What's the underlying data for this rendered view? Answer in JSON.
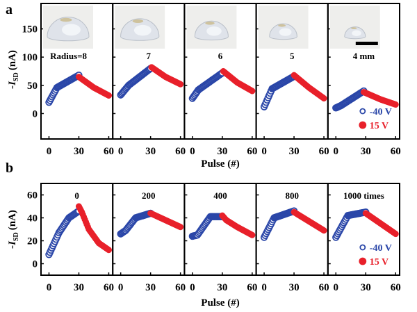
{
  "chart_data": [
    {
      "type": "scatter",
      "panel_letter": "a",
      "xlabel": "Pulse (#)",
      "ylabel": "-I_SD (nA)",
      "ylabel_main": "-I",
      "ylabel_sub": "SD",
      "ylabel_unit": "(nA)",
      "xlim": [
        -8,
        64
      ],
      "ylim": [
        -45,
        195
      ],
      "xticks": [
        0,
        30,
        60
      ],
      "yticks": [
        0,
        50,
        100,
        150
      ],
      "grid": false,
      "legend": {
        "placement": "bottom-right of last subpanel",
        "entries": [
          {
            "label": "-40 V",
            "marker": "open-circle",
            "color": "#2a46a8"
          },
          {
            "label": "15 V",
            "marker": "filled-circle",
            "color": "#e8202a"
          }
        ]
      },
      "insets": "photographs of hemispherical gel drops of decreasing radius; last inset has a scale bar",
      "subpanels": [
        {
          "title": "Radius=8",
          "photo_scale": 1.0,
          "series": [
            {
              "name": "-40 V",
              "x": [
                0,
                8,
                30
              ],
              "y": [
                20,
                46,
                68
              ]
            },
            {
              "name": "15 V",
              "x": [
                30,
                45,
                60
              ],
              "y": [
                65,
                46,
                32
              ]
            }
          ]
        },
        {
          "title": "7",
          "photo_scale": 0.92,
          "series": [
            {
              "name": "-40 V",
              "x": [
                0,
                8,
                30
              ],
              "y": [
                33,
                50,
                80
              ]
            },
            {
              "name": "15 V",
              "x": [
                31,
                45,
                60
              ],
              "y": [
                82,
                65,
                52
              ]
            }
          ]
        },
        {
          "title": "6",
          "photo_scale": 0.8,
          "series": [
            {
              "name": "-40 V",
              "x": [
                0,
                6,
                30
              ],
              "y": [
                27,
                42,
                72
              ]
            },
            {
              "name": "15 V",
              "x": [
                31,
                45,
                60
              ],
              "y": [
                75,
                55,
                40
              ]
            }
          ]
        },
        {
          "title": "5",
          "photo_scale": 0.66,
          "series": [
            {
              "name": "-40 V",
              "x": [
                0,
                8,
                30
              ],
              "y": [
                12,
                44,
                66
              ]
            },
            {
              "name": "15 V",
              "x": [
                30,
                45,
                60
              ],
              "y": [
                68,
                46,
                27
              ]
            }
          ]
        },
        {
          "title": "4 mm",
          "photo_scale": 0.5,
          "scale_bar": true,
          "series": [
            {
              "name": "-40 V",
              "x": [
                0,
                5,
                28
              ],
              "y": [
                10,
                14,
                40
              ]
            },
            {
              "name": "15 V",
              "x": [
                28,
                45,
                60
              ],
              "y": [
                38,
                25,
                16
              ]
            }
          ]
        }
      ]
    },
    {
      "type": "scatter",
      "panel_letter": "b",
      "xlabel": "Pulse (#)",
      "ylabel": "-I_SD (nA)",
      "ylabel_main": "-I",
      "ylabel_sub": "SD",
      "ylabel_unit": "(nA)",
      "xlim": [
        -8,
        64
      ],
      "ylim": [
        -10,
        70
      ],
      "xticks": [
        0,
        30,
        60
      ],
      "yticks": [
        0,
        20,
        40,
        60
      ],
      "grid": false,
      "legend": {
        "placement": "bottom-right of last subpanel",
        "entries": [
          {
            "label": "-40 V",
            "marker": "open-circle",
            "color": "#2a46a8"
          },
          {
            "label": "15 V",
            "marker": "filled-circle",
            "color": "#e8202a"
          }
        ]
      },
      "subpanels": [
        {
          "title": "0",
          "series": [
            {
              "name": "-40 V",
              "x": [
                0,
                10,
                20,
                30
              ],
              "y": [
                8,
                27,
                40,
                46
              ]
            },
            {
              "name": "15 V",
              "x": [
                30,
                33,
                40,
                50,
                60
              ],
              "y": [
                50,
                45,
                30,
                18,
                12
              ]
            }
          ]
        },
        {
          "title": "200",
          "series": [
            {
              "name": "-40 V",
              "x": [
                0,
                5,
                15,
                30
              ],
              "y": [
                26,
                29,
                40,
                44
              ]
            },
            {
              "name": "15 V",
              "x": [
                30,
                45,
                60
              ],
              "y": [
                44,
                38,
                32
              ]
            }
          ]
        },
        {
          "title": "400",
          "series": [
            {
              "name": "-40 V",
              "x": [
                0,
                5,
                18,
                30
              ],
              "y": [
                24,
                25,
                41,
                41
              ]
            },
            {
              "name": "15 V",
              "x": [
                30,
                34,
                45,
                60
              ],
              "y": [
                42,
                38,
                32,
                25
              ]
            }
          ]
        },
        {
          "title": "800",
          "series": [
            {
              "name": "-40 V",
              "x": [
                0,
                10,
                30
              ],
              "y": [
                23,
                40,
                46
              ]
            },
            {
              "name": "15 V",
              "x": [
                30,
                45,
                60
              ],
              "y": [
                45,
                37,
                29
              ]
            }
          ]
        },
        {
          "title": "1000 times",
          "series": [
            {
              "name": "-40 V",
              "x": [
                0,
                12,
                30
              ],
              "y": [
                23,
                42,
                45
              ]
            },
            {
              "name": "15 V",
              "x": [
                30,
                45,
                60
              ],
              "y": [
                44,
                35,
                26
              ]
            }
          ]
        }
      ]
    }
  ],
  "colors": {
    "negative_pulse": "#2a46a8",
    "positive_pulse": "#e8202a",
    "photo_bg": "#eeeeec"
  }
}
